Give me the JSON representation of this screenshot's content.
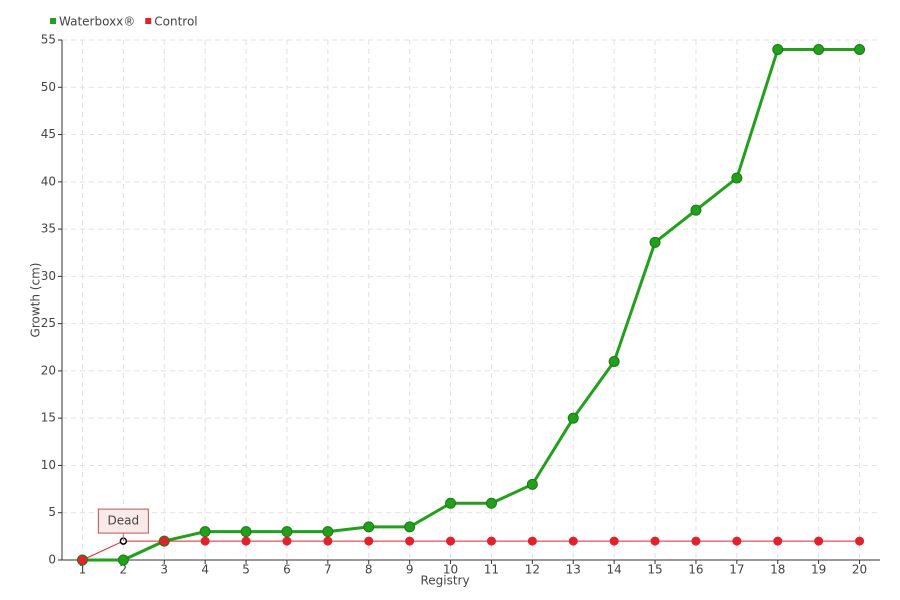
{
  "chart_data": {
    "type": "line",
    "x_label": "Registry",
    "y_label": "Growth (cm)",
    "categories": [
      "1",
      "2",
      "3",
      "4",
      "5",
      "6",
      "7",
      "8",
      "9",
      "10",
      "11",
      "12",
      "13",
      "14",
      "15",
      "16",
      "17",
      "18",
      "19",
      "20"
    ],
    "series": [
      {
        "name": "Waterboxx®",
        "color": "#22a01c",
        "values": [
          0,
          0,
          2,
          3,
          3,
          3,
          3,
          3.5,
          3.5,
          6,
          6,
          8,
          15,
          21,
          33.6,
          37,
          40.4,
          54,
          54,
          54
        ]
      },
      {
        "name": "Control",
        "color": "#e3202c",
        "values": [
          0,
          2,
          2,
          2,
          2,
          2,
          2,
          2,
          2,
          2,
          2,
          2,
          2,
          2,
          2,
          2,
          2,
          2,
          2,
          2
        ]
      }
    ],
    "annotation": {
      "text": "Dead",
      "series": "Control",
      "category": "2"
    },
    "ylim": [
      0,
      55
    ],
    "yticks": [
      0,
      5,
      10,
      15,
      20,
      25,
      30,
      35,
      40,
      45,
      50,
      55
    ],
    "grid": true
  }
}
